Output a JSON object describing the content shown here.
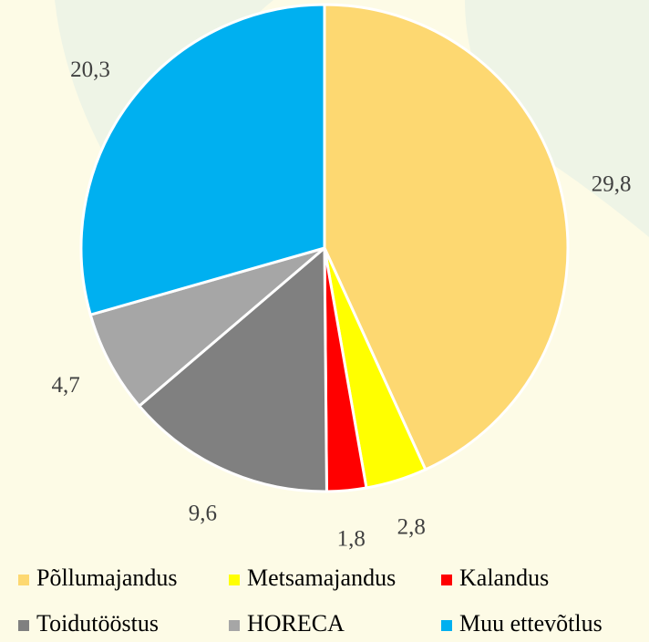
{
  "chart_data": {
    "type": "pie",
    "categories": [
      "Põllumajandus",
      "Metsamajandus",
      "Kalandus",
      "Toidutööstus",
      "HORECA",
      "Muu ettevõtlus"
    ],
    "values": [
      29.8,
      2.8,
      1.8,
      9.6,
      4.7,
      20.3
    ],
    "value_labels": [
      "29,8",
      "2,8",
      "1,8",
      "9,6",
      "4,7",
      "20,3"
    ],
    "colors": [
      "#fdd871",
      "#ffff00",
      "#ff0000",
      "#808080",
      "#a6a6a6",
      "#00b0f0"
    ],
    "legend": "bottom"
  }
}
